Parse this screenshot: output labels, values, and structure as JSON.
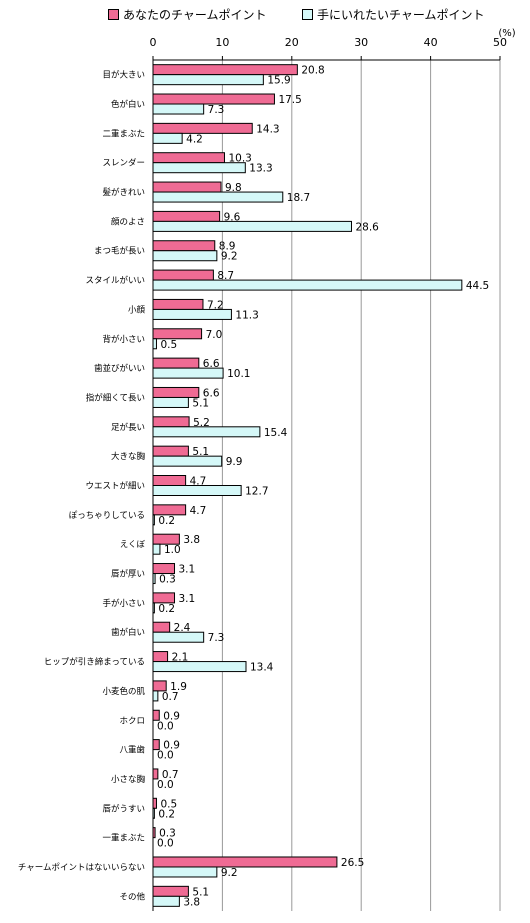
{
  "chart_data": {
    "type": "bar",
    "orientation": "horizontal",
    "unit": "(%)",
    "xlim": [
      0,
      50
    ],
    "ticks": [
      0,
      10,
      20,
      30,
      40,
      50
    ],
    "grid": true,
    "legend_position": "top",
    "categories": [
      "目が大きい",
      "色が白い",
      "二重まぶた",
      "スレンダー",
      "髪がきれい",
      "顔のよさ",
      "まつ毛が長い",
      "スタイルがいい",
      "小顔",
      "背が小さい",
      "歯並びがいい",
      "指が細くて長い",
      "足が長い",
      "大きな胸",
      "ウエストが細い",
      "ぽっちゃりしている",
      "えくぼ",
      "唇が厚い",
      "手が小さい",
      "歯が白い",
      "ヒップが引き締まっている",
      "小麦色の肌",
      "ホクロ",
      "八重歯",
      "小さな胸",
      "唇がうすい",
      "一重まぶた",
      "チャームポイントはないいらない",
      "その他"
    ],
    "series": [
      {
        "name": "あなたのチャームポイント",
        "color": "#ef6b94",
        "values": [
          20.8,
          17.5,
          14.3,
          10.3,
          9.8,
          9.6,
          8.9,
          8.7,
          7.2,
          7.0,
          6.6,
          6.6,
          5.2,
          5.1,
          4.7,
          4.7,
          3.8,
          3.1,
          3.1,
          2.4,
          2.1,
          1.9,
          0.9,
          0.9,
          0.7,
          0.5,
          0.3,
          26.5,
          5.1
        ]
      },
      {
        "name": "手にいれたいチャームポイント",
        "color": "#d5f8f8",
        "values": [
          15.9,
          7.3,
          4.2,
          13.3,
          18.7,
          28.6,
          9.2,
          44.5,
          11.3,
          0.5,
          10.1,
          5.1,
          15.4,
          9.9,
          12.7,
          0.2,
          1.0,
          0.3,
          0.2,
          7.3,
          13.4,
          0.7,
          0.0,
          0.0,
          0.0,
          0.2,
          0.0,
          9.2,
          3.8
        ]
      }
    ]
  }
}
